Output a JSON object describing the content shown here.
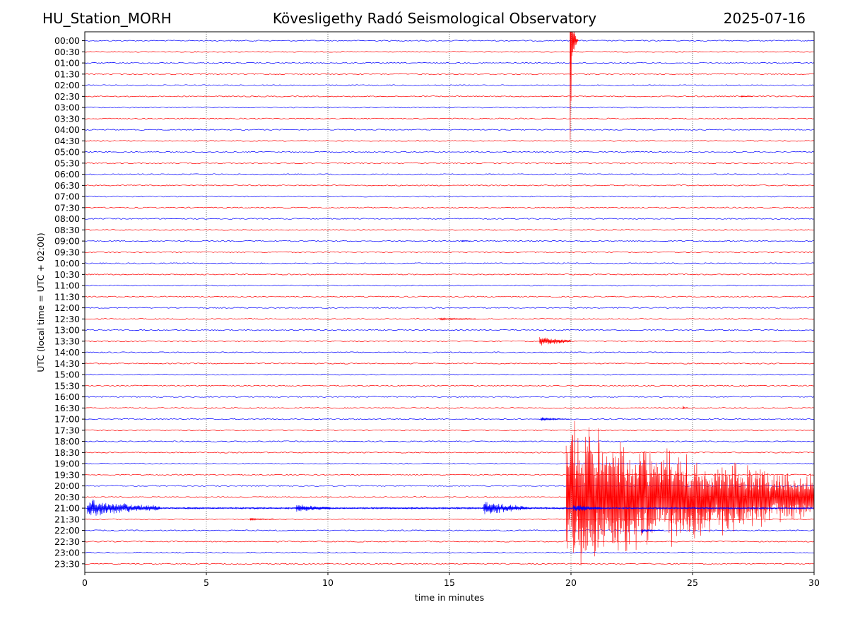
{
  "header": {
    "station": "HU_Station_MORH",
    "title": "Kövesligethy Radó Seismological Observatory",
    "date": "2025-07-16"
  },
  "chart_data": {
    "type": "line",
    "title": "Kövesligethy Radó Seismological Observatory",
    "xlabel": "time in minutes",
    "ylabel": "UTC (local time = UTC + 02:00)",
    "xlim": [
      0,
      30
    ],
    "xticks": [
      0,
      5,
      10,
      15,
      20,
      25,
      30
    ],
    "grid": "vertical dotted at x ticks",
    "colors": {
      "even_hour_rows": "#0000ff",
      "half_hour_rows": "#ff0000"
    },
    "rows": [
      "00:00",
      "00:30",
      "01:00",
      "01:30",
      "02:00",
      "02:30",
      "03:00",
      "03:30",
      "04:00",
      "04:30",
      "05:00",
      "05:30",
      "06:00",
      "06:30",
      "07:00",
      "07:30",
      "08:00",
      "08:30",
      "09:00",
      "09:30",
      "10:00",
      "10:30",
      "11:00",
      "11:30",
      "12:00",
      "12:30",
      "13:00",
      "13:30",
      "14:00",
      "14:30",
      "15:00",
      "15:30",
      "16:00",
      "16:30",
      "17:00",
      "17:30",
      "18:00",
      "18:30",
      "19:00",
      "19:30",
      "20:00",
      "20:30",
      "21:00",
      "21:30",
      "22:00",
      "22:30",
      "23:00",
      "23:30"
    ],
    "events": [
      {
        "row": "00:00",
        "start_min": 19.95,
        "duration_min": 0.35,
        "amplitude_rows": 17,
        "decay": "fast",
        "color": "#ff0000",
        "note": "dominant spike, clipped"
      },
      {
        "row": "13:30",
        "start_min": 18.7,
        "duration_min": 1.3,
        "amplitude_rows": 0.5,
        "decay": "slow",
        "color": "#ff0000"
      },
      {
        "row": "17:00",
        "start_min": 18.75,
        "duration_min": 1.2,
        "amplitude_rows": 0.28,
        "decay": "medium",
        "color": "#0000ff"
      },
      {
        "row": "20:30",
        "start_min": 19.8,
        "duration_min": 10.2,
        "amplitude_rows": 7.5,
        "decay": "slow",
        "color": "#ff0000",
        "note": "main earthquake coda, clipped"
      },
      {
        "row": "21:00",
        "start_min": 0.1,
        "duration_min": 3.0,
        "amplitude_rows": 0.9,
        "decay": "slow",
        "color": "#0000ff"
      },
      {
        "row": "21:00",
        "start_min": 8.7,
        "duration_min": 1.4,
        "amplitude_rows": 0.45,
        "decay": "slow",
        "color": "#0000ff"
      },
      {
        "row": "21:00",
        "start_min": 16.4,
        "duration_min": 1.8,
        "amplitude_rows": 0.75,
        "decay": "slow",
        "color": "#0000ff"
      },
      {
        "row": "21:00",
        "start_min": 20.1,
        "duration_min": 1.2,
        "amplitude_rows": 0.4,
        "decay": "slow",
        "color": "#0000ff"
      },
      {
        "row": "21:00",
        "start_min": 3.0,
        "duration_min": 27.0,
        "amplitude_rows": 0.08,
        "decay": "none",
        "color": "#0000ff",
        "note": "elevated background"
      },
      {
        "row": "21:30",
        "start_min": 6.8,
        "duration_min": 1.0,
        "amplitude_rows": 0.18,
        "decay": "medium",
        "color": "#ff0000"
      },
      {
        "row": "22:00",
        "start_min": 22.9,
        "duration_min": 0.9,
        "amplitude_rows": 0.25,
        "decay": "medium",
        "color": "#0000ff"
      },
      {
        "row": "16:30",
        "start_min": 24.6,
        "duration_min": 0.3,
        "amplitude_rows": 0.3,
        "decay": "fast",
        "color": "#ff0000"
      },
      {
        "row": "09:00",
        "start_min": 15.5,
        "duration_min": 0.4,
        "amplitude_rows": 0.18,
        "decay": "fast",
        "color": "#0000ff"
      },
      {
        "row": "02:30",
        "start_min": 27.0,
        "duration_min": 0.5,
        "amplitude_rows": 0.15,
        "decay": "fast",
        "color": "#ff0000"
      },
      {
        "row": "12:30",
        "start_min": 14.6,
        "duration_min": 1.5,
        "amplitude_rows": 0.12,
        "decay": "slow",
        "color": "#ff0000"
      }
    ]
  }
}
